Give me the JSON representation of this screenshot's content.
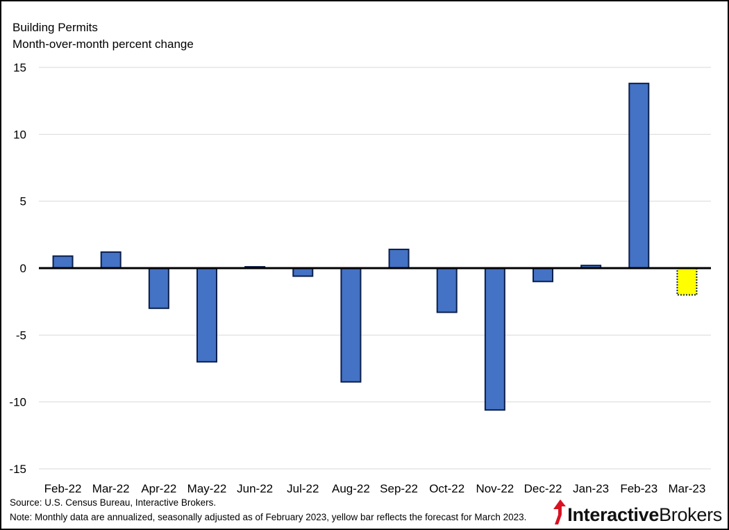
{
  "chart_data": {
    "type": "bar",
    "title": "Building Permits",
    "subtitle": "Month-over-month percent change",
    "xlabel": "",
    "ylabel": "",
    "ylim": [
      -15,
      15
    ],
    "yticks": [
      15,
      10,
      5,
      0,
      -5,
      -10,
      -15
    ],
    "categories": [
      "Feb-22",
      "Mar-22",
      "Apr-22",
      "May-22",
      "Jun-22",
      "Jul-22",
      "Aug-22",
      "Sep-22",
      "Oct-22",
      "Nov-22",
      "Dec-22",
      "Jan-23",
      "Feb-23",
      "Mar-23"
    ],
    "values": [
      0.9,
      1.2,
      -3.0,
      -7.0,
      0.1,
      -0.6,
      -8.5,
      1.4,
      -3.3,
      -10.6,
      -1.0,
      0.2,
      13.8,
      -2.0
    ],
    "forecast_index": 13,
    "grid": true,
    "legend": "none",
    "colors": {
      "bar": "#4472C4",
      "bar_border": "#0B1F4B",
      "forecast": "#FFFF00",
      "gridline": "#D9D9D9",
      "zero_line": "#000000"
    }
  },
  "footer": {
    "source": "Source: U.S. Census Bureau, Interactive Brokers.",
    "note": "Note: Monthly data are annualized, seasonally adjusted as of February 2023, yellow bar reflects the forecast for March  2023."
  },
  "logo": {
    "part1": "Interactive",
    "part2": "Brokers",
    "color": "#D81222"
  }
}
